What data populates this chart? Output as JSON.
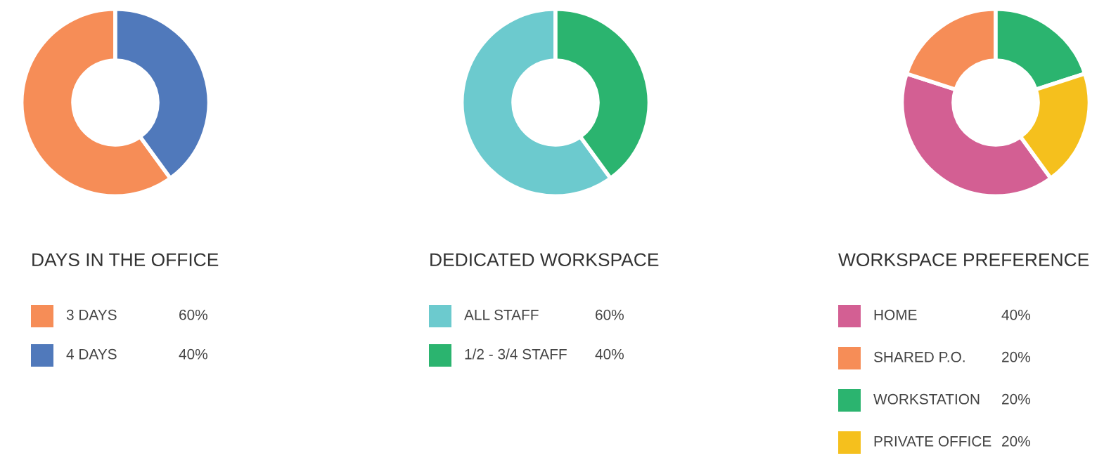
{
  "chart_data": [
    {
      "type": "donut",
      "title": "DAYS IN THE OFFICE",
      "categories": [
        "3 DAYS",
        "4 DAYS"
      ],
      "values": [
        60,
        40
      ],
      "colors": [
        "#f68d57",
        "#5079bb"
      ],
      "value_labels": [
        "60%",
        "40%"
      ],
      "legend": "bottom"
    },
    {
      "type": "donut",
      "title": "DEDICATED WORKSPACE",
      "categories": [
        "ALL STAFF",
        "1/2 - 3/4 STAFF"
      ],
      "values": [
        60,
        40
      ],
      "colors": [
        "#6ccace",
        "#2bb46f"
      ],
      "value_labels": [
        "60%",
        "40%"
      ],
      "legend": "bottom"
    },
    {
      "type": "donut",
      "title": "WORKSPACE PREFERENCE",
      "categories": [
        "HOME",
        "SHARED P.O.",
        "WORKSTATION",
        "PRIVATE OFFICE"
      ],
      "values": [
        40,
        20,
        20,
        20
      ],
      "colors": [
        "#d35f93",
        "#f68d57",
        "#2bb46f",
        "#f5c01d"
      ],
      "value_labels": [
        "40%",
        "20%",
        "20%",
        "20%"
      ],
      "legend": "bottom"
    }
  ]
}
